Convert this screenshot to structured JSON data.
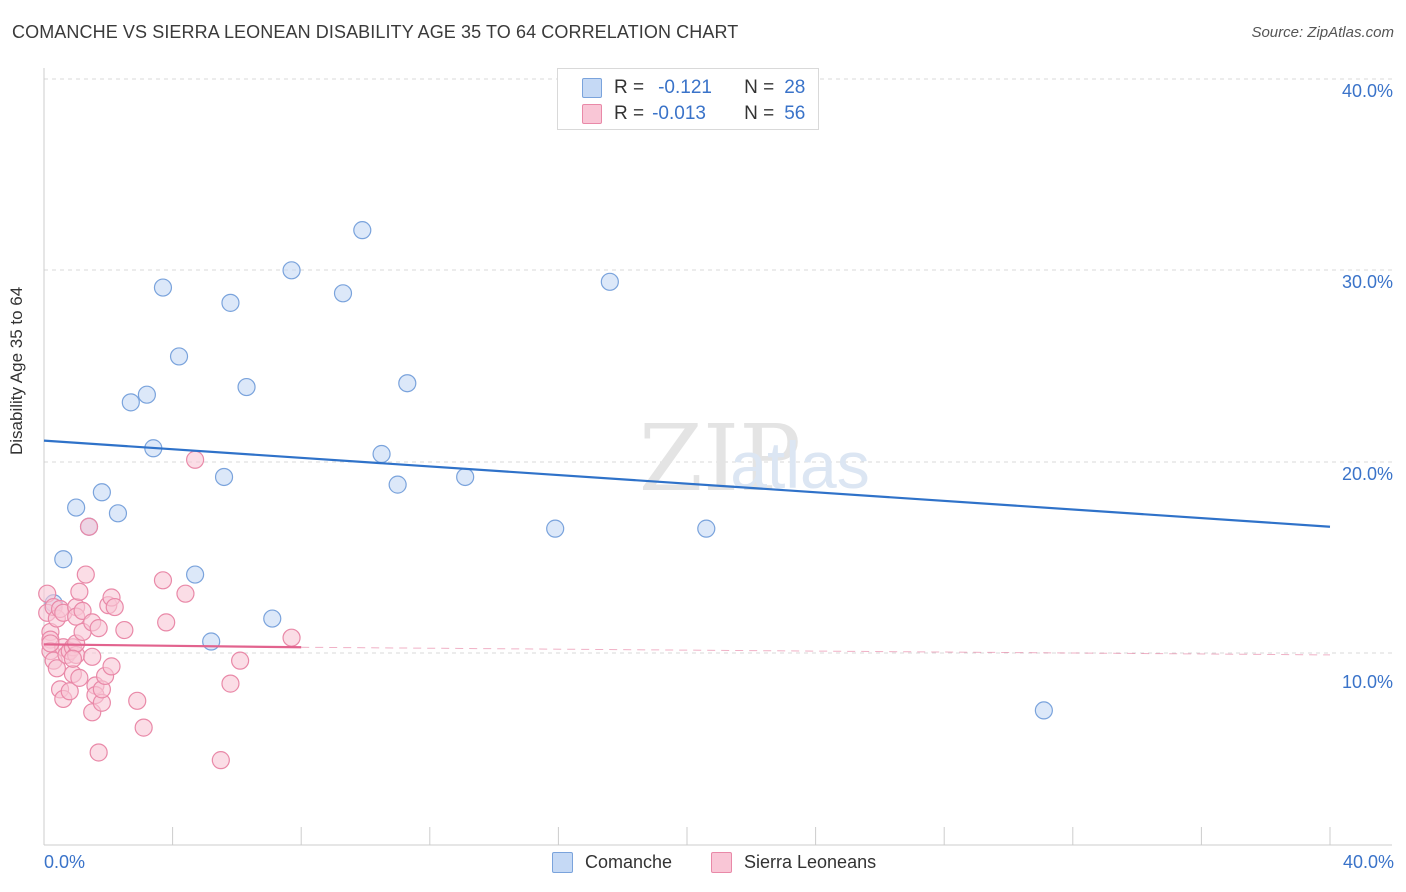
{
  "header": {
    "title": "COMANCHE VS SIERRA LEONEAN DISABILITY AGE 35 TO 64 CORRELATION CHART",
    "source": "Source: ZipAtlas.com"
  },
  "legend": {
    "rows": [
      {
        "r_label": "R =",
        "r_value": "-0.121",
        "n_label": "N =",
        "n_value": "28"
      },
      {
        "r_label": "R =",
        "r_value": "-0.013",
        "n_label": "N =",
        "n_value": "56"
      }
    ],
    "bottom": [
      "Comanche",
      "Sierra Leoneans"
    ]
  },
  "colors": {
    "comanche_fill": "#c5d9f5",
    "comanche_stroke": "#7aa3dc",
    "comanche_line": "#2f72c9",
    "sierra_fill": "#f9c6d6",
    "sierra_stroke": "#e989a8",
    "sierra_line": "#e2638e",
    "grid": "#d8d8d8",
    "axis_text": "#3a73c9"
  },
  "chart_data": {
    "type": "scatter",
    "xlabel": "",
    "ylabel": "Disability Age 35 to 64",
    "xlim": [
      0,
      40
    ],
    "ylim": [
      0,
      40
    ],
    "x_tick_labels": [
      "0.0%",
      "40.0%"
    ],
    "y_tick_labels": [
      "10.0%",
      "20.0%",
      "30.0%",
      "40.0%"
    ],
    "y_ticks": [
      10,
      20,
      30,
      40
    ],
    "grid": true,
    "legend_position": "top-center",
    "watermark": "ZIPatlas",
    "series": [
      {
        "name": "Comanche",
        "r": -0.121,
        "n": 28,
        "trend": {
          "x": [
            0,
            40
          ],
          "y": [
            21.1,
            16.6
          ]
        },
        "points": [
          [
            0.3,
            12.6
          ],
          [
            0.6,
            14.9
          ],
          [
            1.0,
            17.6
          ],
          [
            1.4,
            16.6
          ],
          [
            1.8,
            18.4
          ],
          [
            2.3,
            17.3
          ],
          [
            2.7,
            23.1
          ],
          [
            3.2,
            23.5
          ],
          [
            3.4,
            20.7
          ],
          [
            3.7,
            29.1
          ],
          [
            4.2,
            25.5
          ],
          [
            4.7,
            14.1
          ],
          [
            5.2,
            10.6
          ],
          [
            5.6,
            19.2
          ],
          [
            5.8,
            28.3
          ],
          [
            6.3,
            23.9
          ],
          [
            7.1,
            11.8
          ],
          [
            7.7,
            30.0
          ],
          [
            9.3,
            28.8
          ],
          [
            9.9,
            32.1
          ],
          [
            10.5,
            20.4
          ],
          [
            11.0,
            18.8
          ],
          [
            11.3,
            24.1
          ],
          [
            13.1,
            19.2
          ],
          [
            15.9,
            16.5
          ],
          [
            17.6,
            29.4
          ],
          [
            20.6,
            16.5
          ],
          [
            31.1,
            7.0
          ]
        ]
      },
      {
        "name": "Sierra Leoneans",
        "r": -0.013,
        "n": 56,
        "trend": {
          "x": [
            0,
            8.0
          ],
          "y": [
            10.45,
            10.3
          ]
        },
        "trend_dashed": {
          "x": [
            8.0,
            40
          ],
          "y": [
            10.3,
            9.9
          ]
        },
        "points": [
          [
            0.1,
            13.1
          ],
          [
            0.1,
            12.1
          ],
          [
            0.2,
            11.1
          ],
          [
            0.2,
            10.7
          ],
          [
            0.2,
            10.1
          ],
          [
            0.3,
            12.4
          ],
          [
            0.3,
            9.6
          ],
          [
            0.4,
            11.8
          ],
          [
            0.4,
            9.2
          ],
          [
            0.5,
            12.3
          ],
          [
            0.5,
            8.1
          ],
          [
            0.6,
            10.3
          ],
          [
            0.6,
            12.1
          ],
          [
            0.6,
            7.6
          ],
          [
            0.7,
            9.9
          ],
          [
            0.8,
            10.1
          ],
          [
            0.8,
            8.0
          ],
          [
            0.9,
            10.3
          ],
          [
            0.9,
            8.9
          ],
          [
            1.0,
            9.9
          ],
          [
            1.0,
            10.5
          ],
          [
            1.0,
            12.4
          ],
          [
            1.0,
            11.9
          ],
          [
            1.1,
            13.2
          ],
          [
            1.1,
            8.7
          ],
          [
            1.2,
            11.1
          ],
          [
            1.2,
            12.2
          ],
          [
            1.3,
            14.1
          ],
          [
            1.4,
            16.6
          ],
          [
            1.5,
            11.6
          ],
          [
            1.5,
            9.8
          ],
          [
            1.5,
            6.9
          ],
          [
            1.6,
            8.3
          ],
          [
            1.6,
            7.8
          ],
          [
            1.7,
            11.3
          ],
          [
            1.7,
            4.8
          ],
          [
            1.8,
            7.4
          ],
          [
            1.8,
            8.1
          ],
          [
            1.9,
            8.8
          ],
          [
            2.0,
            12.5
          ],
          [
            2.1,
            9.3
          ],
          [
            2.1,
            12.9
          ],
          [
            2.2,
            12.4
          ],
          [
            2.5,
            11.2
          ],
          [
            2.9,
            7.5
          ],
          [
            3.1,
            6.1
          ],
          [
            3.7,
            13.8
          ],
          [
            3.8,
            11.6
          ],
          [
            4.4,
            13.1
          ],
          [
            4.7,
            20.1
          ],
          [
            5.5,
            4.4
          ],
          [
            5.8,
            8.4
          ],
          [
            6.1,
            9.6
          ],
          [
            7.7,
            10.8
          ],
          [
            0.2,
            10.5
          ],
          [
            0.9,
            9.7
          ]
        ]
      }
    ]
  }
}
